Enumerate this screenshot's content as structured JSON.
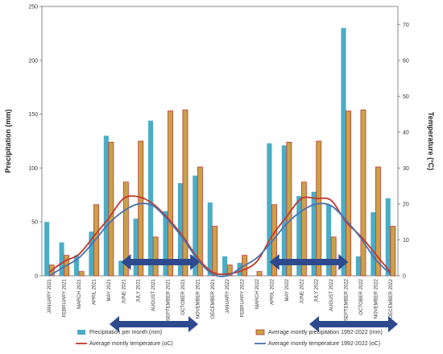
{
  "chart_data": {
    "type": "bar",
    "title": "",
    "ylabel": "Precipitation (mm)",
    "y2label": "Temperature (°C)",
    "ylim": [
      0,
      250
    ],
    "y2lim": [
      0,
      75
    ],
    "yticks": [
      "0",
      "50",
      "100",
      "150",
      "200",
      "250"
    ],
    "y2ticks": [
      "0",
      "10",
      "20",
      "30",
      "40",
      "50",
      "60",
      "70"
    ],
    "categories": [
      "JANUARY 2021",
      "FEBRUARY 2021",
      "MARCH 2021",
      "APRIL 2021",
      "MAY 2021",
      "JUNE 2021",
      "JULY 2021",
      "AUGUST 2021",
      "SEPTEMBER 2021",
      "OCTOBER 2021",
      "NOVEMBER 2021",
      "DECEMBER 2021",
      "JANUARY 2022",
      "FEBRUARY 2022",
      "MARCH 2022",
      "APRIL 2022",
      "MAY 2022",
      "JUNE 2022",
      "JULY 2022",
      "AUGUST 2022",
      "SEPTEMBER 2022",
      "OCTOBER 2022",
      "NOVEMBER 2022",
      "DECEMBER 2022"
    ],
    "series": [
      {
        "name": "Precipitation per month (mm)",
        "type": "bar",
        "axis": "left",
        "color": "#4bacc6",
        "values": [
          50,
          31,
          19,
          41,
          130,
          14,
          53,
          144,
          60,
          86,
          93,
          68,
          18,
          12,
          0,
          123,
          121,
          74,
          78,
          66,
          230,
          18,
          59,
          72
        ]
      },
      {
        "name": "Average montly precipitation 1992-2022 (mm)",
        "type": "bar",
        "axis": "left",
        "color": "#c8a24a",
        "edge": "#c0392b",
        "values": [
          10,
          19,
          4,
          66,
          124,
          87,
          125,
          36,
          153,
          154,
          101,
          46,
          10,
          19,
          4,
          66,
          124,
          87,
          125,
          36,
          153,
          154,
          101,
          46
        ]
      },
      {
        "name": "Average montly temperature (oC)",
        "type": "line",
        "axis": "right",
        "color": "#c0392b",
        "values": [
          1,
          4,
          6,
          11,
          16,
          21.5,
          22,
          20,
          16,
          11,
          5,
          1,
          0.5,
          1.5,
          4,
          11,
          16.5,
          21.5,
          21.5,
          21,
          15,
          11,
          6,
          1
        ]
      },
      {
        "name": "Average montly temperature 1992-2022 (oC)",
        "type": "line",
        "axis": "right",
        "color": "#4a72b0",
        "values": [
          0,
          2.5,
          5,
          9.5,
          14.5,
          18,
          20,
          19.5,
          15.5,
          10.5,
          4.5,
          0.5,
          0,
          2.5,
          5,
          9.5,
          14.5,
          18,
          20,
          19.5,
          15.5,
          10.5,
          4.5,
          0.5
        ]
      }
    ],
    "arrows": [
      {
        "from_category": 5,
        "to_category": 10,
        "color": "#2e4a8e"
      },
      {
        "from_category": 15,
        "to_category": 20,
        "color": "#2e4a8e"
      }
    ],
    "legend_position": "bottom",
    "grid": false
  }
}
